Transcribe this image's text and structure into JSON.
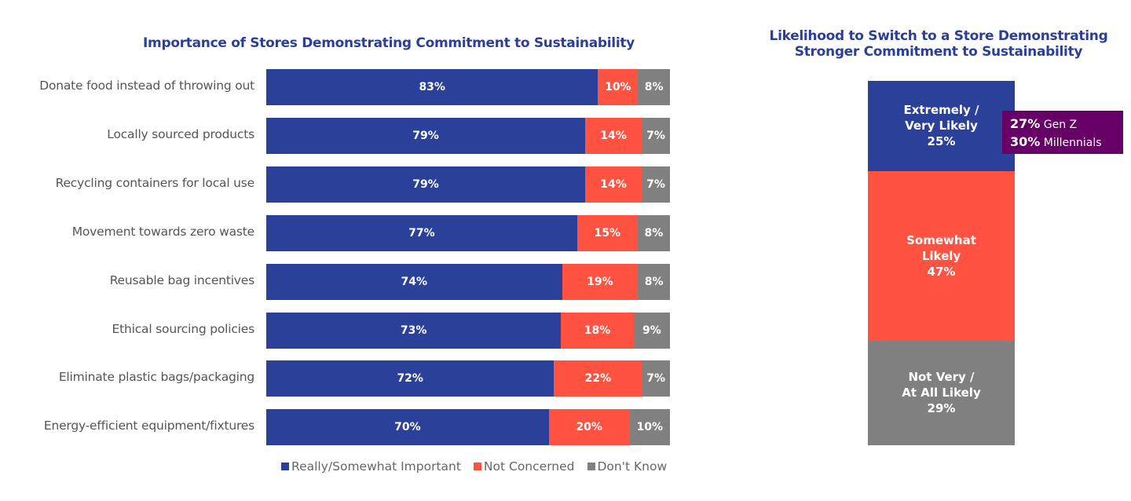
{
  "colors": {
    "important": "#2B4199",
    "not_concerned": "#FF5240",
    "dont_know": "#808080",
    "annotation": "#660066"
  },
  "chart_data": [
    {
      "type": "bar",
      "orientation": "horizontal",
      "stacked": true,
      "title": "Importance of Stores Demonstrating Commitment to Sustainability",
      "categories": [
        "Donate food instead of throwing out",
        "Locally sourced products",
        "Recycling containers for local use",
        "Movement towards zero waste",
        "Reusable bag incentives",
        "Ethical sourcing policies",
        "Eliminate plastic bags/packaging",
        "Energy-efficient equipment/fixtures"
      ],
      "series": [
        {
          "name": "Really/Somewhat Important",
          "values": [
            83,
            79,
            79,
            77,
            74,
            73,
            72,
            70
          ]
        },
        {
          "name": "Not Concerned",
          "values": [
            10,
            14,
            14,
            15,
            19,
            18,
            22,
            20
          ]
        },
        {
          "name": "Don't Know",
          "values": [
            8,
            7,
            7,
            8,
            8,
            9,
            7,
            10
          ]
        }
      ],
      "legend": "bottom"
    },
    {
      "type": "bar",
      "orientation": "vertical",
      "stacked": true,
      "title": "Likelihood to Switch to a Store Demonstrating\nStronger Commitment to Sustainability",
      "segments": [
        {
          "label": "Extremely /\nVery Likely",
          "value": 25
        },
        {
          "label": "Somewhat\nLikely",
          "value": 47
        },
        {
          "label": "Not Very /\nAt All Likely",
          "value": 29
        }
      ],
      "annotation": [
        {
          "value": "27%",
          "label": "Gen Z"
        },
        {
          "value": "30%",
          "label": "Millennials"
        }
      ]
    }
  ]
}
